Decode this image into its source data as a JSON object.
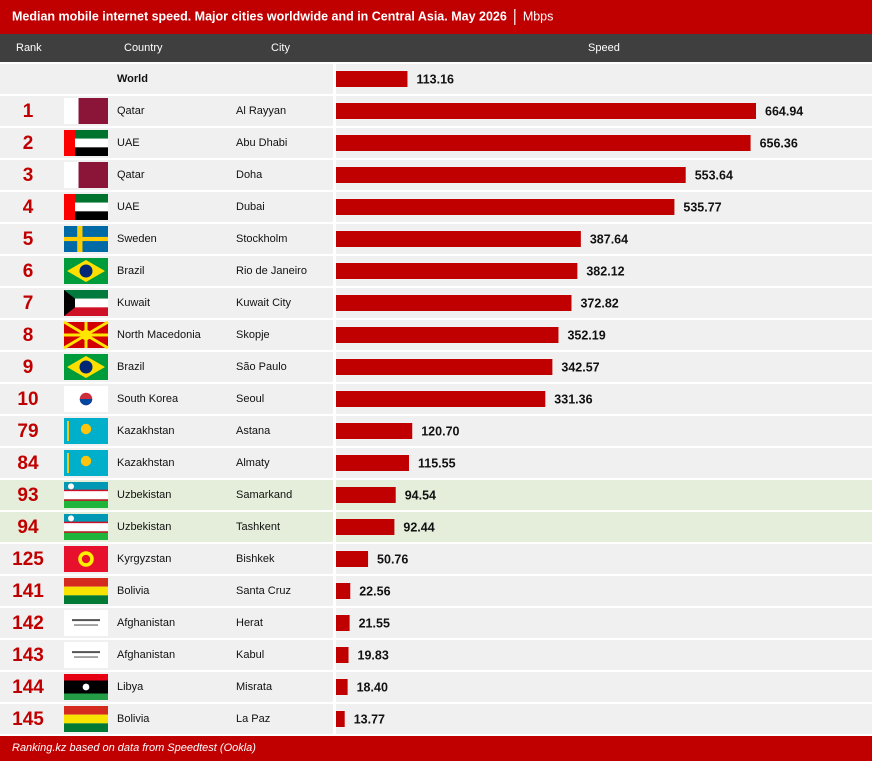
{
  "chart_data": {
    "type": "bar",
    "orientation": "horizontal",
    "title": "Median mobile internet speed. Major cities worldwide and in Central Asia. May 2026",
    "unit": "Mbps",
    "columns": [
      "Rank",
      "Country",
      "City",
      "Speed"
    ],
    "ranks": [
      null,
      1,
      2,
      3,
      4,
      5,
      6,
      7,
      8,
      9,
      10,
      79,
      84,
      93,
      94,
      125,
      141,
      142,
      143,
      144,
      145
    ],
    "countries": [
      "World",
      "Qatar",
      "UAE",
      "Qatar",
      "UAE",
      "Sweden",
      "Brazil",
      "Kuwait",
      "North Macedonia",
      "Brazil",
      "South Korea",
      "Kazakhstan",
      "Kazakhstan",
      "Uzbekistan",
      "Uzbekistan",
      "Kyrgyzstan",
      "Bolivia",
      "Afghanistan",
      "Afghanistan",
      "Libya",
      "Bolivia"
    ],
    "categories": [
      null,
      "Al Rayyan",
      "Abu Dhabi",
      "Doha",
      "Dubai",
      "Stockholm",
      "Rio de Janeiro",
      "Kuwait City",
      "Skopje",
      "São Paulo",
      "Seoul",
      "Astana",
      "Almaty",
      "Samarkand",
      "Tashkent",
      "Bishkek",
      "Santa Cruz",
      "Herat",
      "Kabul",
      "Misrata",
      "La Paz"
    ],
    "values": [
      113.16,
      664.94,
      656.36,
      553.64,
      535.77,
      387.64,
      382.12,
      372.82,
      352.19,
      342.57,
      331.36,
      120.7,
      115.55,
      94.54,
      92.44,
      50.76,
      22.56,
      21.55,
      19.83,
      18.4,
      13.77
    ],
    "value_labels": [
      "113.16",
      "664.94",
      "656.36",
      "553.64",
      "535.77",
      "387.64",
      "382.12",
      "372.82",
      "352.19",
      "342.57",
      "331.36",
      "120.70",
      "115.55",
      "94.54",
      "92.44",
      "50.76",
      "22.56",
      "21.55",
      "19.83",
      "18.40",
      "13.77"
    ],
    "color": "#c00000",
    "highlighted_rows": [
      13,
      14
    ],
    "highlight_color": "#e5eedb",
    "source": "Ranking.kz based on data from Speedtest (Ookla)"
  }
}
